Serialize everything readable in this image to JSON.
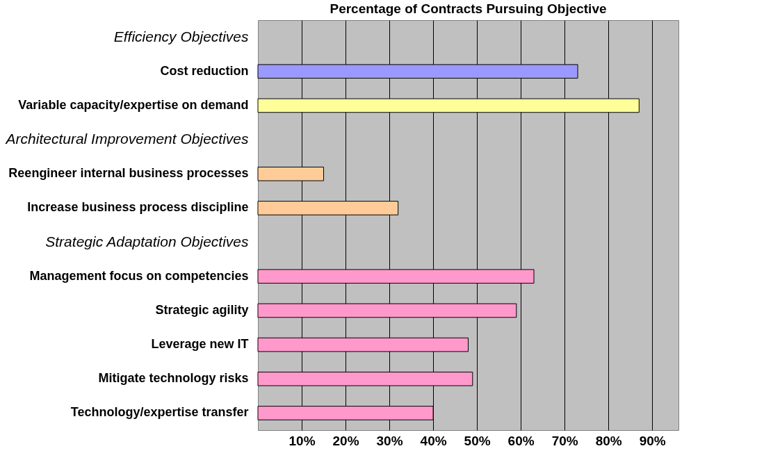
{
  "chart_data": {
    "type": "bar",
    "orientation": "horizontal",
    "title": "Percentage of Contracts Pursuing Objective",
    "categories": [
      "Efficiency Objectives",
      "Cost reduction",
      "Variable capacity/expertise on demand",
      "Architectural Improvement Objectives",
      "Reengineer internal business processes",
      "Increase business process discipline",
      "Strategic Adaptation Objectives",
      "Management focus on competencies",
      "Strategic agility",
      "Leverage new IT",
      "Mitigate technology risks",
      "Technology/expertise transfer"
    ],
    "values": [
      null,
      73,
      87,
      null,
      15,
      32,
      null,
      63,
      59,
      48,
      49,
      40
    ],
    "colors": [
      null,
      "#9999ff",
      "#ffff99",
      null,
      "#ffcc99",
      "#ffcc99",
      null,
      "#ff99cc",
      "#ff99cc",
      "#ff99cc",
      "#ff99cc",
      "#ff99cc"
    ],
    "xlim": [
      0,
      96
    ],
    "xticks": [
      {
        "value": 10,
        "label": "10%"
      },
      {
        "value": 20,
        "label": "20%"
      },
      {
        "value": 30,
        "label": "30%"
      },
      {
        "value": 40,
        "label": "40%"
      },
      {
        "value": 50,
        "label": "50%"
      },
      {
        "value": 60,
        "label": "60%"
      },
      {
        "value": 70,
        "label": "70%"
      },
      {
        "value": 80,
        "label": "80%"
      },
      {
        "value": 90,
        "label": "90%"
      }
    ],
    "grid": "x"
  }
}
